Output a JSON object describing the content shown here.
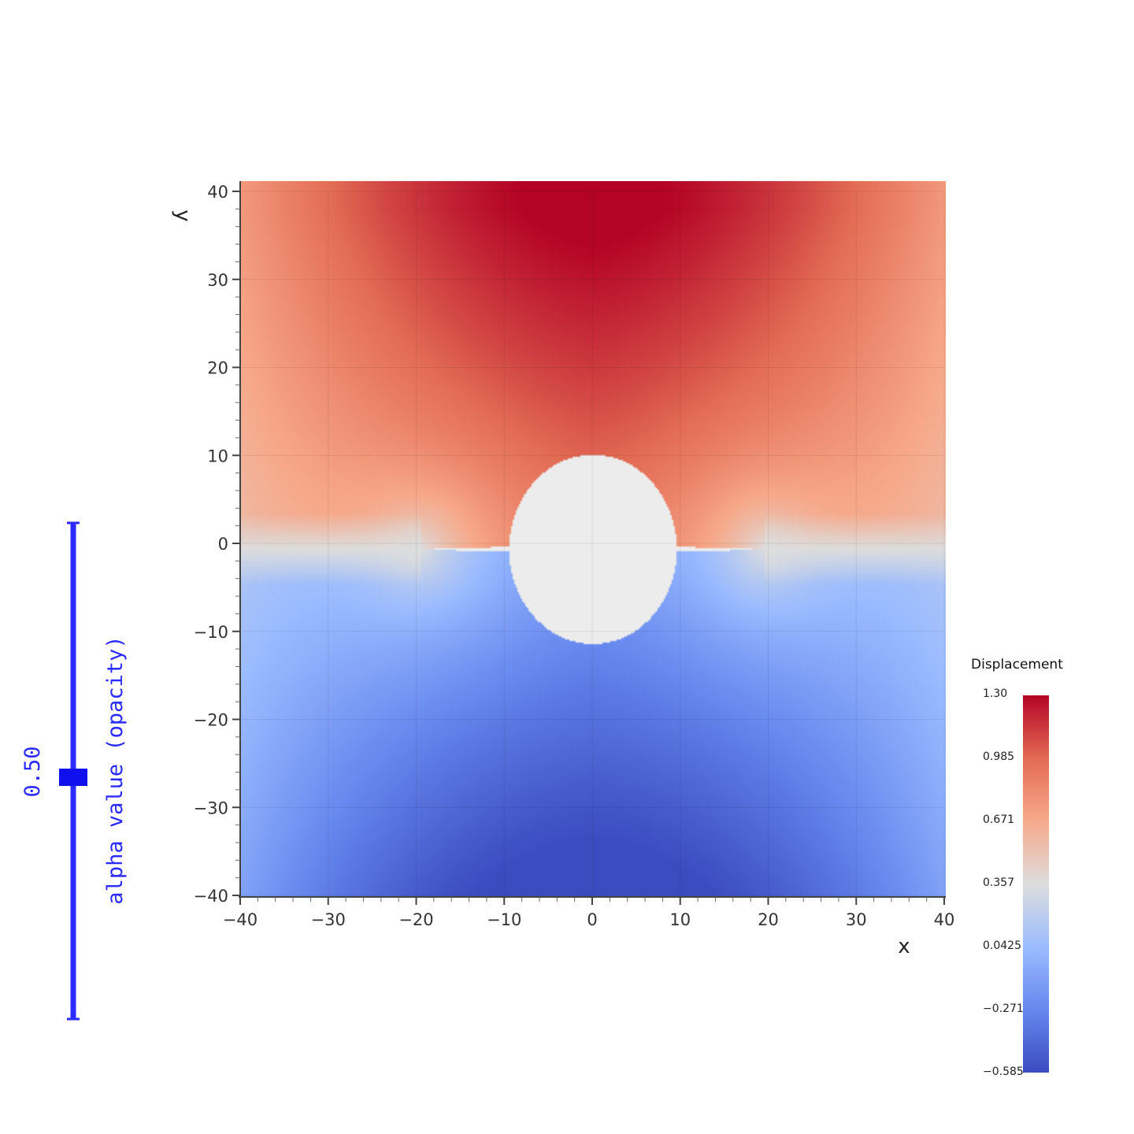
{
  "chart_data": {
    "type": "heatmap",
    "title": "",
    "xlabel": "x",
    "ylabel": "y",
    "xlim": [
      -40,
      40
    ],
    "ylim": [
      -40,
      40
    ],
    "x_ticks": [
      -40,
      -30,
      -20,
      -10,
      0,
      10,
      20,
      30,
      40
    ],
    "y_ticks": [
      -40,
      -30,
      -20,
      -10,
      0,
      10,
      20,
      30,
      40
    ],
    "x_tick_labels": [
      "−40",
      "−30",
      "−20",
      "−10",
      "0",
      "10",
      "20",
      "30",
      "40"
    ],
    "y_tick_labels": [
      "−40",
      "−30",
      "−20",
      "−10",
      "0",
      "10",
      "20",
      "30",
      "40"
    ],
    "colormap": "coolwarm",
    "scalar_bar": {
      "title": "Displacement",
      "min": -0.585,
      "max": 1.3,
      "labels": [
        "1.30",
        "0.985",
        "0.671",
        "0.357",
        "0.0425",
        "−0.271",
        "−0.585"
      ]
    },
    "field": {
      "max_value": 1.3,
      "max_location": [
        0,
        40
      ],
      "min_value": -0.585,
      "min_location": [
        0,
        -40
      ],
      "hole_center": [
        0,
        0
      ],
      "hole_radius": 10,
      "crack_tips": [
        [
          -19.5,
          0
        ],
        [
          19.5,
          0
        ]
      ],
      "hole_color": "#ececec"
    }
  },
  "slider": {
    "label": "alpha value (opacity)",
    "value_text": "0.50",
    "min": 0,
    "max": 1,
    "value": 0.5,
    "color": "#2b2bff"
  },
  "colors": {
    "cool": "#3b4cc0",
    "neutral": "#dddddd",
    "warm": "#b40426"
  }
}
